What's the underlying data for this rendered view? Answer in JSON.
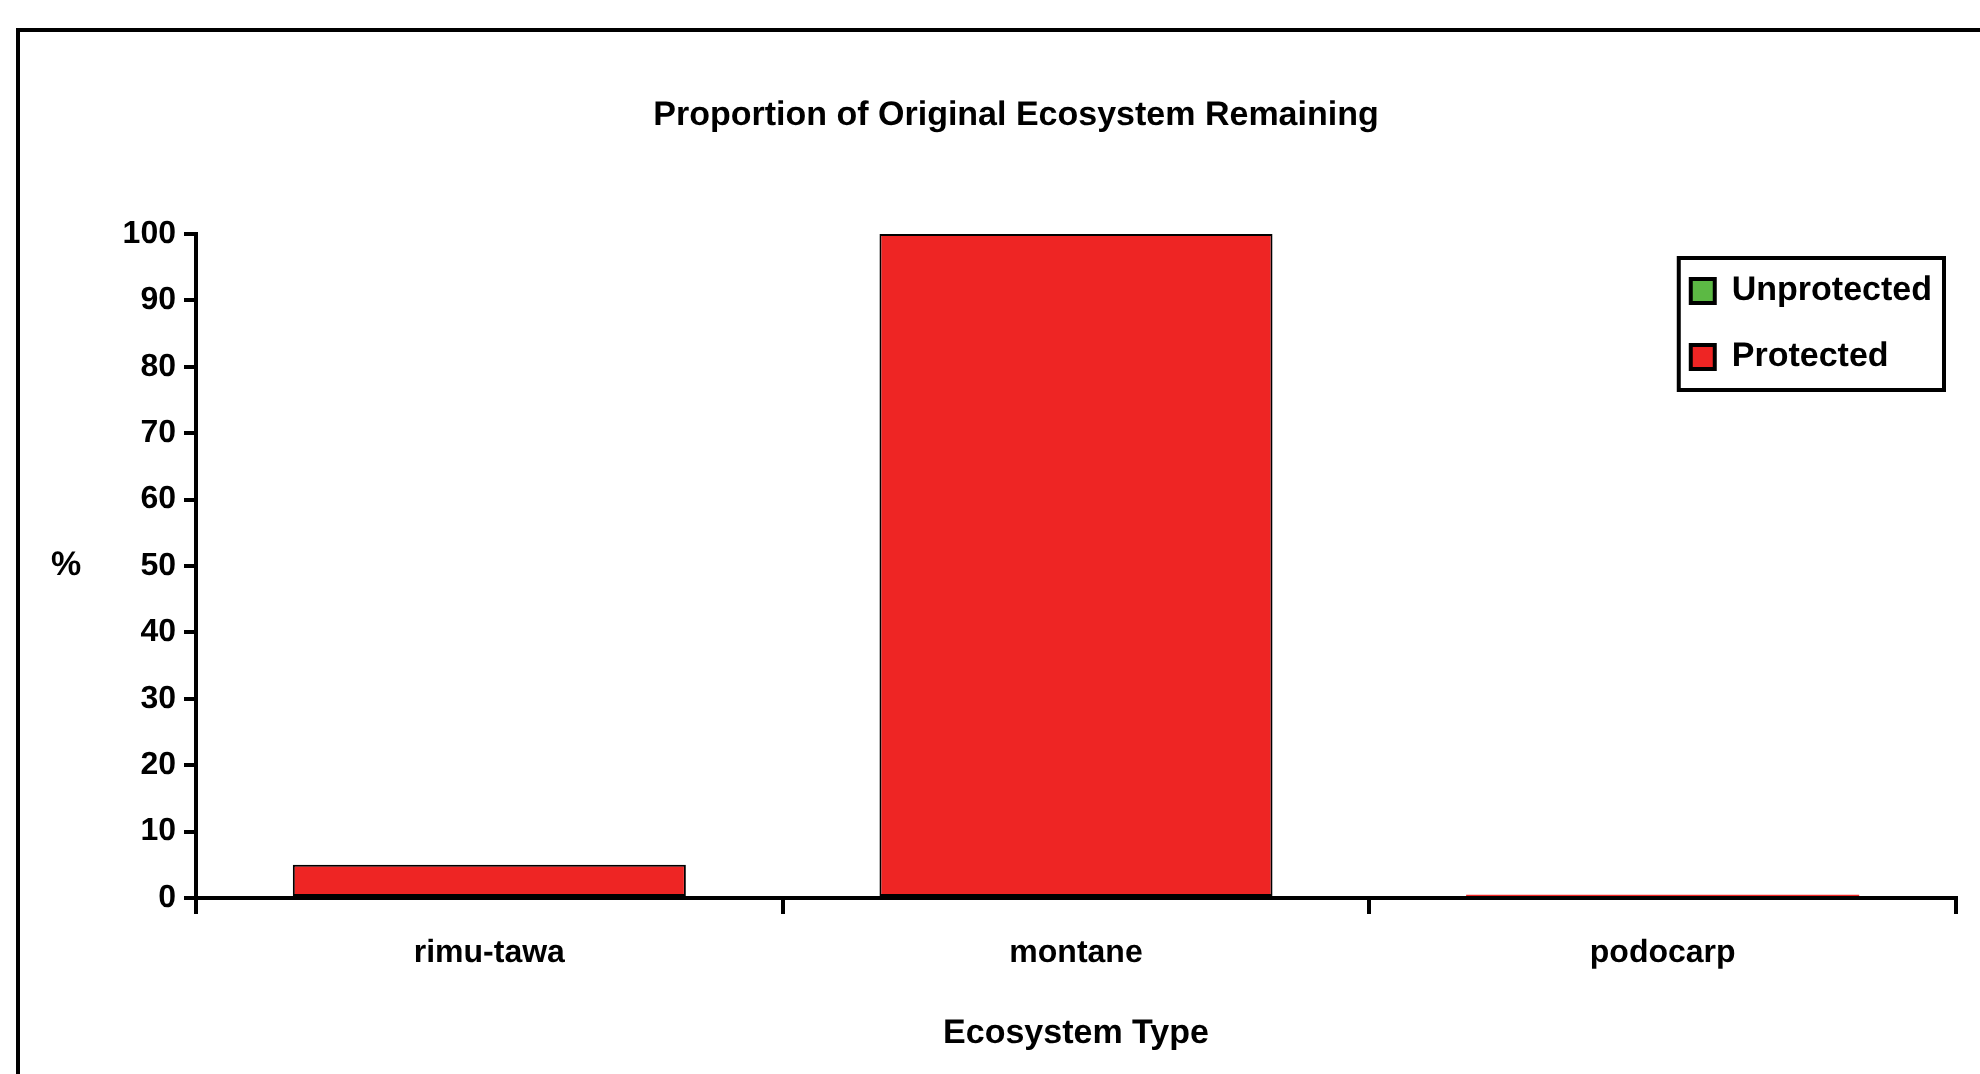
{
  "chart_data": {
    "type": "bar",
    "title": "Proportion of Original Ecosystem Remaining",
    "xlabel": "Ecosystem Type",
    "ylabel": "%",
    "categories": [
      "rimu-tawa",
      "montane",
      "podocarp"
    ],
    "series": [
      {
        "name": "Protected",
        "color": "#ee2524",
        "values": [
          5,
          100,
          0.5
        ]
      },
      {
        "name": "Unprotected",
        "color": "#5cb944",
        "values": [
          0,
          0,
          0
        ]
      }
    ],
    "stacked": true,
    "ylim": [
      0,
      100
    ],
    "yticks": [
      0,
      10,
      20,
      30,
      40,
      50,
      60,
      70,
      80,
      90,
      100
    ],
    "grid": false,
    "legend": "top right"
  }
}
